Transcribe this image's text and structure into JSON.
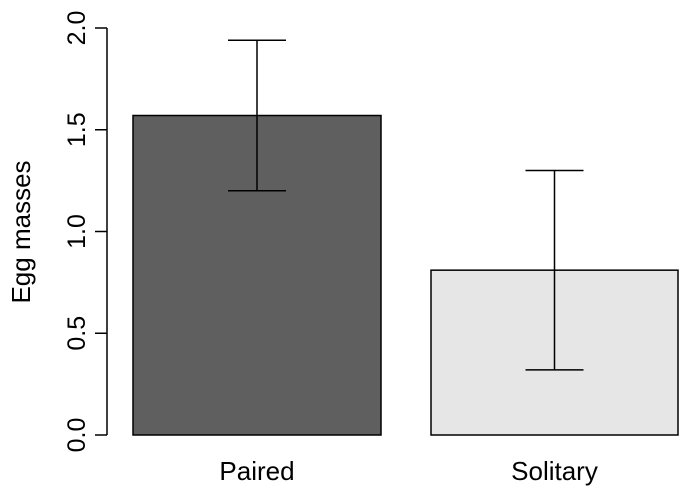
{
  "chart_data": {
    "type": "bar",
    "categories": [
      "Paired",
      "Solitary"
    ],
    "values": [
      1.57,
      0.81
    ],
    "error_low": [
      1.2,
      0.32
    ],
    "error_high": [
      1.94,
      1.3
    ],
    "bar_colors": [
      "#5f5f5f",
      "#e6e6e6"
    ],
    "ylabel": "Egg masses",
    "xlabel": "",
    "title": "",
    "ylim": [
      0,
      2.0
    ],
    "yticks": [
      "0.0",
      "0.5",
      "1.0",
      "1.5",
      "2.0"
    ],
    "grid": false,
    "legend": "none"
  }
}
